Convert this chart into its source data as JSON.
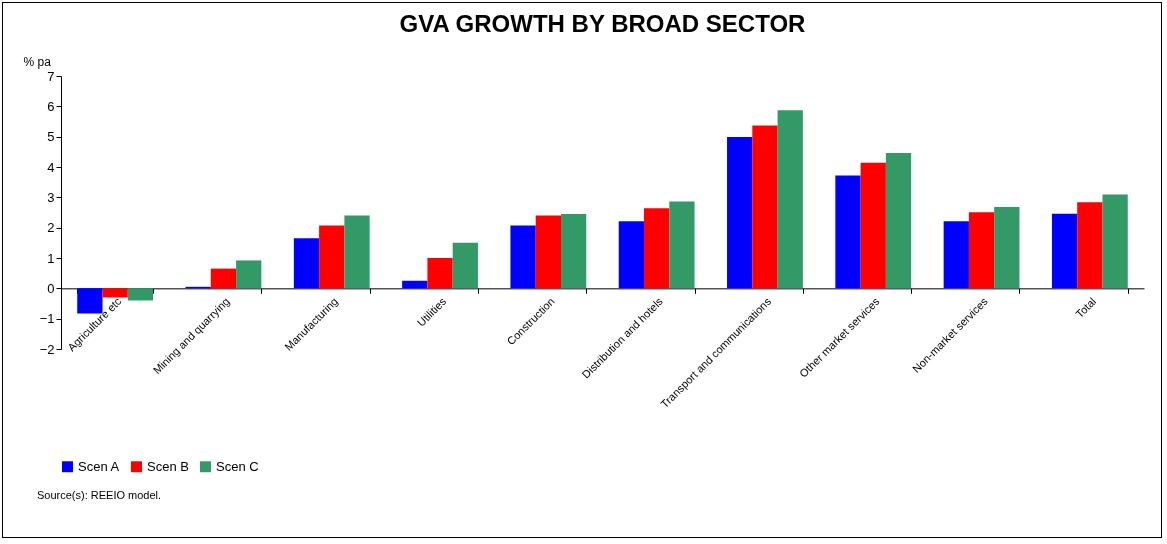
{
  "chart_data": {
    "type": "bar",
    "title": "GVA GROWTH BY BROAD SECTOR",
    "ylabel": "% pa",
    "categories": [
      "Agriculture etc",
      "Mining and quarrying",
      "Manufacturing",
      "Utilities",
      "Construction",
      "Distribution and hotels",
      "Transport and communications",
      "Other market services",
      "Non-market services",
      "Total"
    ],
    "series": [
      {
        "name": "Scen A",
        "color": "#0000ff",
        "values": [
          -0.83,
          0.05,
          1.65,
          0.25,
          2.07,
          2.21,
          4.99,
          3.72,
          2.21,
          2.46
        ]
      },
      {
        "name": "Scen B",
        "color": "#ff0000",
        "values": [
          -0.3,
          0.65,
          2.07,
          1.0,
          2.4,
          2.64,
          5.37,
          4.14,
          2.51,
          2.84
        ]
      },
      {
        "name": "Scen C",
        "color": "#339966",
        "values": [
          -0.4,
          0.92,
          2.4,
          1.5,
          2.45,
          2.86,
          5.87,
          4.46,
          2.68,
          3.09
        ]
      }
    ],
    "ylim": [
      -2,
      7
    ],
    "yticks": [
      -2,
      -1,
      0,
      1,
      2,
      3,
      4,
      5,
      6,
      7
    ],
    "grid": false,
    "legend": "bottom",
    "annotations": [
      "Source(s):  REEIO model."
    ]
  }
}
